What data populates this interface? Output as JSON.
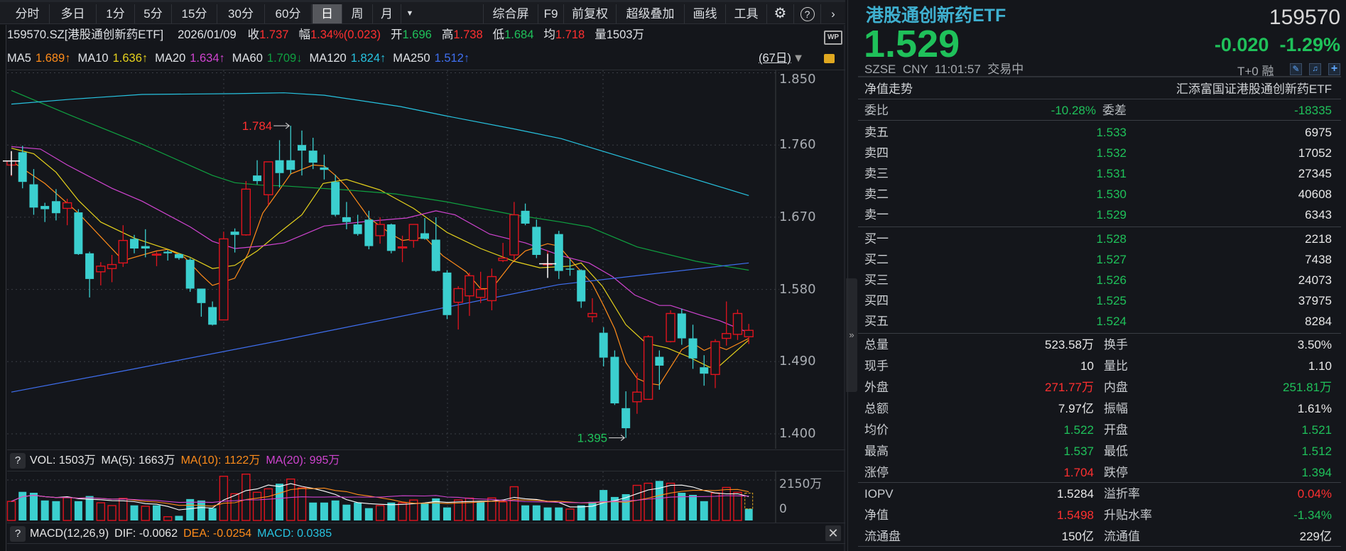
{
  "toolbar": {
    "periods": [
      "分时",
      "多日",
      "1分",
      "5分",
      "15分",
      "30分",
      "60分",
      "日",
      "周",
      "月"
    ],
    "selected": "日",
    "more_icon": "caret-down-icon",
    "tools": [
      "综合屏",
      "F9",
      "前复权",
      "超级叠加",
      "画线",
      "工具"
    ],
    "icons": [
      "gear-icon",
      "help-icon",
      "chevron-right-icon"
    ]
  },
  "info": {
    "code_name": "159570.SZ[港股通创新药ETF]",
    "date": "2026/01/09",
    "close_label": "收",
    "close": "1.737",
    "change_label": "幅",
    "change": "1.34%(0.023)",
    "open_label": "开",
    "open": "1.696",
    "high_label": "高",
    "high": "1.738",
    "low_label": "低",
    "low": "1.684",
    "avg_label": "均",
    "avg": "1.718",
    "vol_label": "量",
    "vol": "1503万",
    "wp_icon": "WP"
  },
  "ma_legend": [
    {
      "name": "MA5",
      "value": "1.689↑",
      "color": "#ff8c1a"
    },
    {
      "name": "MA10",
      "value": "1.636↑",
      "color": "#e6d21c"
    },
    {
      "name": "MA20",
      "value": "1.634↑",
      "color": "#d044d0"
    },
    {
      "name": "MA60",
      "value": "1.709↓",
      "color": "#0fa040"
    },
    {
      "name": "MA120",
      "value": "1.824↑",
      "color": "#27c3e0"
    },
    {
      "name": "MA250",
      "value": "1.512↑",
      "color": "#3f6ff0"
    }
  ],
  "range_label": "(67日)",
  "chart_data": {
    "type": "candlestick",
    "ylim": [
      1.38,
      1.86
    ],
    "y_ticks": [
      "1.850",
      "1.760",
      "1.670",
      "1.580",
      "1.490",
      "1.400"
    ],
    "y_tick_values": [
      1.85,
      1.76,
      1.67,
      1.58,
      1.49,
      1.4
    ],
    "grid": true,
    "up_color": "#e0141e",
    "down_color": "#3bcfcf",
    "ohlc": [
      [
        1.735,
        1.752,
        1.721,
        1.74
      ],
      [
        1.751,
        1.759,
        1.706,
        1.714
      ],
      [
        1.711,
        1.73,
        1.673,
        1.682
      ],
      [
        1.684,
        1.688,
        1.664,
        1.68
      ],
      [
        1.69,
        1.705,
        1.666,
        1.675
      ],
      [
        1.681,
        1.693,
        1.66,
        1.688
      ],
      [
        1.676,
        1.68,
        1.623,
        1.624
      ],
      [
        1.625,
        1.627,
        1.57,
        1.593
      ],
      [
        1.602,
        1.614,
        1.585,
        1.609
      ],
      [
        1.606,
        1.623,
        1.589,
        1.611
      ],
      [
        1.613,
        1.66,
        1.608,
        1.641
      ],
      [
        1.643,
        1.648,
        1.625,
        1.631
      ],
      [
        1.634,
        1.655,
        1.62,
        1.631
      ],
      [
        1.623,
        1.627,
        1.609,
        1.624
      ],
      [
        1.627,
        1.629,
        1.616,
        1.625
      ],
      [
        1.624,
        1.625,
        1.617,
        1.619
      ],
      [
        1.617,
        1.619,
        1.577,
        1.581
      ],
      [
        1.581,
        1.581,
        1.546,
        1.563
      ],
      [
        1.558,
        1.565,
        1.535,
        1.536
      ],
      [
        1.542,
        1.652,
        1.542,
        1.643
      ],
      [
        1.652,
        1.656,
        1.626,
        1.648
      ],
      [
        1.648,
        1.715,
        1.647,
        1.705
      ],
      [
        1.722,
        1.741,
        1.711,
        1.715
      ],
      [
        1.698,
        1.739,
        1.685,
        1.739
      ],
      [
        1.741,
        1.766,
        1.707,
        1.725
      ],
      [
        1.741,
        1.784,
        1.724,
        1.729
      ],
      [
        1.76,
        1.778,
        1.722,
        1.753
      ],
      [
        1.753,
        1.769,
        1.73,
        1.738
      ],
      [
        1.732,
        1.748,
        1.717,
        1.729
      ],
      [
        1.714,
        1.723,
        1.671,
        1.673
      ],
      [
        1.67,
        1.689,
        1.655,
        1.664
      ],
      [
        1.661,
        1.673,
        1.647,
        1.649
      ],
      [
        1.667,
        1.678,
        1.63,
        1.634
      ],
      [
        1.647,
        1.67,
        1.637,
        1.661
      ],
      [
        1.661,
        1.662,
        1.625,
        1.628
      ],
      [
        1.632,
        1.647,
        1.614,
        1.633
      ],
      [
        1.641,
        1.661,
        1.632,
        1.661
      ],
      [
        1.65,
        1.669,
        1.642,
        1.643
      ],
      [
        1.642,
        1.67,
        1.602,
        1.603
      ],
      [
        1.601,
        1.604,
        1.543,
        1.548
      ],
      [
        1.564,
        1.584,
        1.53,
        1.581
      ],
      [
        1.572,
        1.601,
        1.547,
        1.597
      ],
      [
        1.57,
        1.602,
        1.563,
        1.58
      ],
      [
        1.566,
        1.606,
        1.554,
        1.596
      ],
      [
        1.616,
        1.638,
        1.614,
        1.619
      ],
      [
        1.623,
        1.689,
        1.616,
        1.673
      ],
      [
        1.678,
        1.687,
        1.66,
        1.662
      ],
      [
        1.658,
        1.667,
        1.619,
        1.623
      ],
      [
        1.612,
        1.628,
        1.608,
        1.612
      ],
      [
        1.649,
        1.653,
        1.593,
        1.603
      ],
      [
        1.606,
        1.618,
        1.597,
        1.605
      ],
      [
        1.604,
        1.605,
        1.557,
        1.565
      ],
      [
        1.546,
        1.569,
        1.539,
        1.55
      ],
      [
        1.526,
        1.533,
        1.484,
        1.495
      ],
      [
        1.496,
        1.504,
        1.436,
        1.438
      ],
      [
        1.432,
        1.453,
        1.395,
        1.407
      ],
      [
        1.44,
        1.476,
        1.425,
        1.452
      ],
      [
        1.443,
        1.523,
        1.443,
        1.521
      ],
      [
        1.496,
        1.504,
        1.455,
        1.485
      ],
      [
        1.515,
        1.554,
        1.514,
        1.55
      ],
      [
        1.55,
        1.556,
        1.511,
        1.519
      ],
      [
        1.519,
        1.536,
        1.481,
        1.494
      ],
      [
        1.483,
        1.498,
        1.46,
        1.475
      ],
      [
        1.474,
        1.518,
        1.457,
        1.515
      ],
      [
        1.519,
        1.565,
        1.51,
        1.525
      ],
      [
        1.524,
        1.555,
        1.517,
        1.55
      ],
      [
        1.521,
        1.537,
        1.512,
        1.529
      ]
    ],
    "ma_lines": {
      "MA5": [
        [
          0,
          1.74
        ],
        [
          3,
          1.712
        ],
        [
          6,
          1.675
        ],
        [
          10,
          1.616
        ],
        [
          13,
          1.628
        ],
        [
          14,
          1.63
        ],
        [
          15.5,
          1.62
        ],
        [
          17,
          1.598
        ],
        [
          18,
          1.585
        ],
        [
          20,
          1.594
        ],
        [
          21.2,
          1.625
        ],
        [
          22.5,
          1.675
        ],
        [
          24.4,
          1.712
        ],
        [
          25,
          1.724
        ],
        [
          27,
          1.735
        ],
        [
          28,
          1.734
        ],
        [
          29,
          1.722
        ],
        [
          30,
          1.708
        ],
        [
          32,
          1.669
        ],
        [
          34,
          1.649
        ],
        [
          35,
          1.641
        ],
        [
          37,
          1.645
        ],
        [
          38.6,
          1.622
        ],
        [
          40.7,
          1.602
        ],
        [
          42,
          1.581
        ],
        [
          43,
          1.581
        ],
        [
          44.8,
          1.613
        ],
        [
          46,
          1.628
        ],
        [
          48,
          1.637
        ],
        [
          49,
          1.634
        ],
        [
          50.3,
          1.613
        ],
        [
          52,
          1.587
        ],
        [
          53,
          1.56
        ],
        [
          54,
          1.531
        ],
        [
          55,
          1.489
        ],
        [
          56,
          1.469
        ],
        [
          57,
          1.463
        ],
        [
          58,
          1.461
        ],
        [
          60,
          1.505
        ],
        [
          61,
          1.513
        ],
        [
          62,
          1.504
        ],
        [
          63,
          1.51
        ],
        [
          64,
          1.505
        ],
        [
          66,
          1.519
        ]
      ],
      "MA10": [
        [
          0,
          1.756
        ],
        [
          2,
          1.749
        ],
        [
          4,
          1.726
        ],
        [
          6,
          1.691
        ],
        [
          8,
          1.664
        ],
        [
          11,
          1.644
        ],
        [
          14,
          1.63
        ],
        [
          16,
          1.62
        ],
        [
          18,
          1.606
        ],
        [
          20,
          1.61
        ],
        [
          22,
          1.628
        ],
        [
          24,
          1.651
        ],
        [
          26,
          1.673
        ],
        [
          27.9,
          1.712
        ],
        [
          30,
          1.717
        ],
        [
          33,
          1.704
        ],
        [
          36,
          1.681
        ],
        [
          39,
          1.651
        ],
        [
          42,
          1.631
        ],
        [
          45,
          1.615
        ],
        [
          47.3,
          1.607
        ],
        [
          50,
          1.609
        ],
        [
          51,
          1.613
        ],
        [
          52.9,
          1.584
        ],
        [
          55,
          1.536
        ],
        [
          56.8,
          1.513
        ],
        [
          58.7,
          1.507
        ],
        [
          60.6,
          1.496
        ],
        [
          62.5,
          1.483
        ],
        [
          63.4,
          1.485
        ],
        [
          66,
          1.517
        ]
      ],
      "MA20": [
        [
          0,
          1.758
        ],
        [
          2.6,
          1.755
        ],
        [
          5,
          1.735
        ],
        [
          9,
          1.706
        ],
        [
          11.7,
          1.69
        ],
        [
          16,
          1.658
        ],
        [
          18,
          1.64
        ],
        [
          20,
          1.631
        ],
        [
          22.3,
          1.634
        ],
        [
          24.4,
          1.638
        ],
        [
          28,
          1.659
        ],
        [
          32,
          1.665
        ],
        [
          35.4,
          1.669
        ],
        [
          38,
          1.678
        ],
        [
          39.7,
          1.673
        ],
        [
          42.8,
          1.649
        ],
        [
          46,
          1.638
        ],
        [
          49.2,
          1.622
        ],
        [
          51.7,
          1.613
        ],
        [
          53.8,
          1.596
        ],
        [
          55.8,
          1.573
        ],
        [
          58,
          1.56
        ],
        [
          59,
          1.56
        ],
        [
          61.7,
          1.548
        ],
        [
          63.4,
          1.541
        ],
        [
          66,
          1.526
        ]
      ],
      "MA60": [
        [
          0,
          1.828
        ],
        [
          5.3,
          1.797
        ],
        [
          11.7,
          1.761
        ],
        [
          18,
          1.722
        ],
        [
          20,
          1.713
        ],
        [
          22.3,
          1.71
        ],
        [
          24.4,
          1.709
        ],
        [
          30,
          1.704
        ],
        [
          34.4,
          1.699
        ],
        [
          39,
          1.689
        ],
        [
          45,
          1.673
        ],
        [
          49.2,
          1.664
        ],
        [
          51.7,
          1.658
        ],
        [
          56,
          1.633
        ],
        [
          61.3,
          1.615
        ],
        [
          66,
          1.604
        ]
      ],
      "MA120": [
        [
          0,
          1.811
        ],
        [
          5.3,
          1.817
        ],
        [
          11.7,
          1.823
        ],
        [
          20,
          1.824
        ],
        [
          24.4,
          1.825
        ],
        [
          28,
          1.822
        ],
        [
          34.8,
          1.808
        ],
        [
          39,
          1.796
        ],
        [
          45,
          1.78
        ],
        [
          49.2,
          1.768
        ],
        [
          57,
          1.735
        ],
        [
          66,
          1.697
        ]
      ],
      "MA250": [
        [
          0,
          1.452
        ],
        [
          11,
          1.481
        ],
        [
          24,
          1.516
        ],
        [
          49,
          1.586
        ],
        [
          66,
          1.613
        ]
      ]
    },
    "annotations": [
      {
        "text": "1.784",
        "index": 25,
        "price": 1.784,
        "color": "#ff3030"
      },
      {
        "text": "1.395",
        "index": 55,
        "price": 1.395,
        "color": "#1fc15a"
      }
    ]
  },
  "volume": {
    "legend": [
      {
        "text": "VOL: 1503万",
        "color": "#e6e6e6"
      },
      {
        "text": "MA(5): 1663万",
        "color": "#e6e6e6"
      },
      {
        "text": "MA(10): 1122万",
        "color": "#ff8c1a"
      },
      {
        "text": "MA(20): 995万",
        "color": "#d044d0"
      }
    ],
    "y_ticks": [
      "2150万",
      "0"
    ],
    "ymax": 2150,
    "values": [
      1013,
      1520,
      1471,
      1063,
      1026,
      1211,
      1026,
      1298,
      939,
      791,
      1174,
      803,
      754,
      803,
      198,
      247,
      1137,
      1063,
      655,
      2348,
      1421,
      2460,
      1496,
      1681,
      1953,
      2200,
      1730,
      952,
      952,
      1063,
      840,
      952,
      655,
      791,
      952,
      939,
      1088,
      902,
      1174,
      692,
      1088,
      1187,
      989,
      1199,
      989,
      1792,
      803,
      803,
      692,
      692,
      606,
      803,
      989,
      1619,
      1248,
      1397,
      1866,
      1978,
      2101,
      1978,
      1471,
      1360,
      1026,
      1458,
      1755,
      1496,
      618
    ],
    "up": [
      1,
      0,
      0,
      0,
      0,
      1,
      0,
      0,
      1,
      1,
      1,
      0,
      1,
      0,
      1,
      0,
      0,
      0,
      0,
      1,
      1,
      1,
      1,
      1,
      0,
      1,
      1,
      0,
      0,
      0,
      0,
      0,
      0,
      1,
      0,
      1,
      1,
      0,
      0,
      0,
      1,
      1,
      0,
      1,
      1,
      1,
      0,
      0,
      0,
      0,
      1,
      0,
      0,
      0,
      0,
      0,
      1,
      1,
      0,
      1,
      0,
      0,
      0,
      1,
      1,
      1,
      0
    ]
  },
  "macd": {
    "legend": [
      {
        "text": "MACD(12,26,9)",
        "color": "#e6e6e6"
      },
      {
        "text": "DIF: -0.0062",
        "color": "#e6e6e6"
      },
      {
        "text": "DEA: -0.0254",
        "color": "#ff8c1a"
      },
      {
        "text": "MACD: 0.0385",
        "color": "#27c3e0"
      }
    ],
    "help": "?",
    "close_icon": "close-icon"
  },
  "vol_help": "?",
  "quote": {
    "name": "港股通创新药ETF",
    "code": "159570",
    "price": "1.529",
    "change": "-0.020",
    "change_pct": "-1.29%",
    "meta": "SZSE  CNY  11:01:57  交易中",
    "t0": "T+0 融",
    "nav_trend": "净值走势",
    "fund_full_name": "汇添富国证港股通创新药ETF",
    "wb_label": "委比",
    "wb": "-10.28%",
    "wc_label": "委差",
    "wc": "-18335",
    "asks": [
      {
        "label": "卖五",
        "price": "1.533",
        "vol": "6975"
      },
      {
        "label": "卖四",
        "price": "1.532",
        "vol": "17052"
      },
      {
        "label": "卖三",
        "price": "1.531",
        "vol": "27345"
      },
      {
        "label": "卖二",
        "price": "1.530",
        "vol": "40608"
      },
      {
        "label": "卖一",
        "price": "1.529",
        "vol": "6343"
      }
    ],
    "bids": [
      {
        "label": "买一",
        "price": "1.528",
        "vol": "2218"
      },
      {
        "label": "买二",
        "price": "1.527",
        "vol": "7438"
      },
      {
        "label": "买三",
        "price": "1.526",
        "vol": "24073"
      },
      {
        "label": "买四",
        "price": "1.525",
        "vol": "37975"
      },
      {
        "label": "买五",
        "price": "1.524",
        "vol": "8284"
      }
    ],
    "stats": [
      {
        "l1": "总量",
        "v1": "523.58万",
        "c1": "#e8e8e8",
        "l2": "换手",
        "v2": "3.50%",
        "c2": "#e8e8e8"
      },
      {
        "l1": "现手",
        "v1": "10",
        "c1": "#e8e8e8",
        "l2": "量比",
        "v2": "1.10",
        "c2": "#e8e8e8"
      },
      {
        "l1": "外盘",
        "v1": "271.77万",
        "c1": "#ff3030",
        "l2": "内盘",
        "v2": "251.81万",
        "c2": "#1fc15a"
      },
      {
        "l1": "总额",
        "v1": "7.97亿",
        "c1": "#e8e8e8",
        "l2": "振幅",
        "v2": "1.61%",
        "c2": "#e8e8e8"
      },
      {
        "l1": "均价",
        "v1": "1.522",
        "c1": "#1fc15a",
        "l2": "开盘",
        "v2": "1.521",
        "c2": "#1fc15a"
      },
      {
        "l1": "最高",
        "v1": "1.537",
        "c1": "#1fc15a",
        "l2": "最低",
        "v2": "1.512",
        "c2": "#1fc15a"
      },
      {
        "l1": "涨停",
        "v1": "1.704",
        "c1": "#ff3030",
        "l2": "跌停",
        "v2": "1.394",
        "c2": "#1fc15a"
      }
    ],
    "fund": [
      {
        "l1": "IOPV",
        "v1": "1.5284",
        "c1": "#e8e8e8",
        "l2": "溢折率",
        "v2": "0.04%",
        "c2": "#ff3030"
      },
      {
        "l1": "净值",
        "v1": "1.5498",
        "c1": "#ff3030",
        "l2": "升贴水率",
        "v2": "-1.34%",
        "c2": "#1fc15a"
      },
      {
        "l1": "流通盘",
        "v1": "150亿",
        "c1": "#e8e8e8",
        "l2": "流通值",
        "v2": "229亿",
        "c2": "#e8e8e8"
      }
    ]
  },
  "colors": {
    "name": "#3fb0d0",
    "down": "#1fc15a",
    "up": "#ff3030",
    "bg": "#14161b"
  }
}
